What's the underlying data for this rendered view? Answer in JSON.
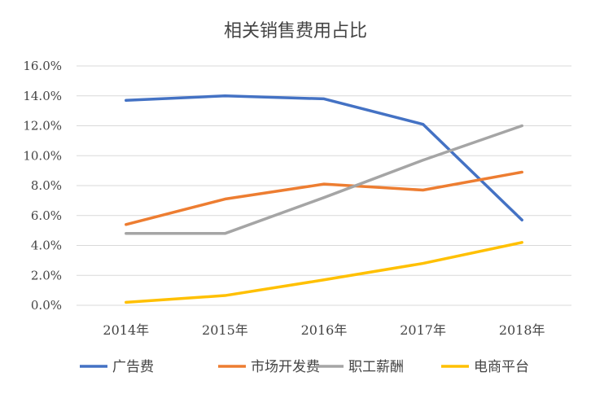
{
  "chart_data": {
    "type": "line",
    "title": "相关销售费用占比",
    "xlabel": "",
    "ylabel": "",
    "categories": [
      "2014年",
      "2015年",
      "2016年",
      "2017年",
      "2018年"
    ],
    "ylim": [
      0,
      16
    ],
    "yticks": [
      "0.0%",
      "2.0%",
      "4.0%",
      "6.0%",
      "8.0%",
      "10.0%",
      "12.0%",
      "14.0%",
      "16.0%"
    ],
    "grid": true,
    "legend_position": "bottom",
    "series": [
      {
        "name": "广告费",
        "color": "#4472C4",
        "values": [
          13.7,
          14.0,
          13.8,
          12.1,
          5.7
        ]
      },
      {
        "name": "市场开发费",
        "color": "#ED7D31",
        "values": [
          5.4,
          7.1,
          8.1,
          7.7,
          8.9
        ]
      },
      {
        "name": "职工薪酬",
        "color": "#A5A5A5",
        "values": [
          4.8,
          4.8,
          7.2,
          9.7,
          12.0
        ]
      },
      {
        "name": "电商平台",
        "color": "#FFC000",
        "values": [
          0.2,
          0.65,
          1.7,
          2.8,
          4.2
        ]
      }
    ]
  }
}
